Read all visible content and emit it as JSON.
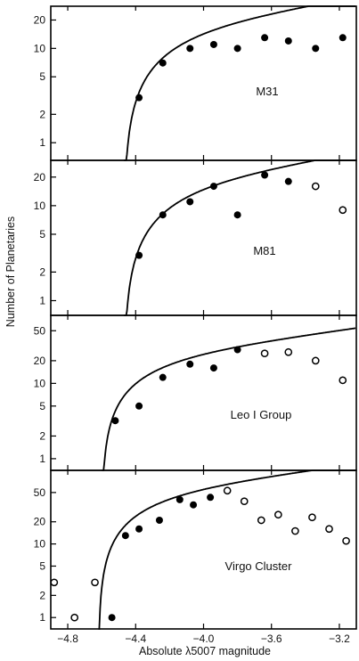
{
  "chart_data": {
    "type": "scatter",
    "ylabel": "Number of Planetaries",
    "xlabel": "Absolute λ5007 magnitude",
    "xlim": [
      -4.9,
      -3.1
    ],
    "x_ticks": [
      -4.8,
      -4.4,
      -4.0,
      -3.6,
      -3.2
    ],
    "x_tick_labels": [
      "−4.8",
      "−4.4",
      "−4.0",
      "−3.6",
      "−3.2"
    ],
    "y_scale": "log",
    "grid": false,
    "panels": [
      {
        "label": "M31",
        "ylim": [
          0.65,
          28
        ],
        "y_ticks": [
          1,
          2,
          5,
          10,
          20
        ],
        "filled_points": [
          {
            "x": -4.38,
            "y": 3
          },
          {
            "x": -4.24,
            "y": 7
          },
          {
            "x": -4.08,
            "y": 10
          },
          {
            "x": -3.94,
            "y": 11
          },
          {
            "x": -3.8,
            "y": 10
          },
          {
            "x": -3.64,
            "y": 13
          },
          {
            "x": -3.5,
            "y": 12
          },
          {
            "x": -3.34,
            "y": 10
          },
          {
            "x": -3.18,
            "y": 13
          }
        ],
        "open_points": [],
        "fit_curve": {
          "cutoff": -4.47,
          "scale": 13.5,
          "slope": 0.307,
          "steepness": 3.0
        }
      },
      {
        "label": "M81",
        "ylim": [
          0.7,
          30
        ],
        "y_ticks": [
          1,
          2,
          5,
          10,
          20
        ],
        "filled_points": [
          {
            "x": -4.38,
            "y": 3
          },
          {
            "x": -4.24,
            "y": 8
          },
          {
            "x": -4.08,
            "y": 11
          },
          {
            "x": -3.94,
            "y": 16
          },
          {
            "x": -3.8,
            "y": 8
          },
          {
            "x": -3.64,
            "y": 21
          },
          {
            "x": -3.5,
            "y": 18
          }
        ],
        "open_points": [
          {
            "x": -3.34,
            "y": 16
          },
          {
            "x": -3.18,
            "y": 9
          }
        ],
        "fit_curve": {
          "cutoff": -4.47,
          "scale": 14.0,
          "slope": 0.307,
          "steepness": 3.0
        }
      },
      {
        "label": "Leo I Group",
        "ylim": [
          0.7,
          80
        ],
        "y_ticks": [
          1,
          2,
          5,
          10,
          20,
          50
        ],
        "filled_points": [
          {
            "x": -4.52,
            "y": 3.2
          },
          {
            "x": -4.38,
            "y": 5
          },
          {
            "x": -4.24,
            "y": 12
          },
          {
            "x": -4.08,
            "y": 18
          },
          {
            "x": -3.94,
            "y": 16
          },
          {
            "x": -3.8,
            "y": 28
          }
        ],
        "open_points": [
          {
            "x": -3.64,
            "y": 25
          },
          {
            "x": -3.5,
            "y": 26
          },
          {
            "x": -3.34,
            "y": 20
          },
          {
            "x": -3.18,
            "y": 11
          }
        ],
        "fit_curve": {
          "cutoff": -4.6,
          "scale": 19.0,
          "slope": 0.307,
          "steepness": 3.0
        }
      },
      {
        "label": "Virgo Cluster",
        "ylim": [
          0.7,
          100
        ],
        "y_ticks": [
          1,
          2,
          5,
          10,
          20,
          50
        ],
        "filled_points": [
          {
            "x": -4.54,
            "y": 1
          },
          {
            "x": -4.46,
            "y": 13
          },
          {
            "x": -4.38,
            "y": 16
          },
          {
            "x": -4.26,
            "y": 21
          },
          {
            "x": -4.14,
            "y": 40
          },
          {
            "x": -4.06,
            "y": 34
          },
          {
            "x": -3.96,
            "y": 43
          }
        ],
        "open_points": [
          {
            "x": -4.88,
            "y": 3
          },
          {
            "x": -4.76,
            "y": 1
          },
          {
            "x": -4.64,
            "y": 3
          },
          {
            "x": -3.86,
            "y": 53
          },
          {
            "x": -3.76,
            "y": 38
          },
          {
            "x": -3.66,
            "y": 21
          },
          {
            "x": -3.56,
            "y": 25
          },
          {
            "x": -3.46,
            "y": 15
          },
          {
            "x": -3.36,
            "y": 23
          },
          {
            "x": -3.26,
            "y": 16
          },
          {
            "x": -3.16,
            "y": 11
          }
        ],
        "fit_curve": {
          "cutoff": -4.62,
          "scale": 42.0,
          "slope": 0.307,
          "steepness": 3.0
        }
      }
    ]
  }
}
